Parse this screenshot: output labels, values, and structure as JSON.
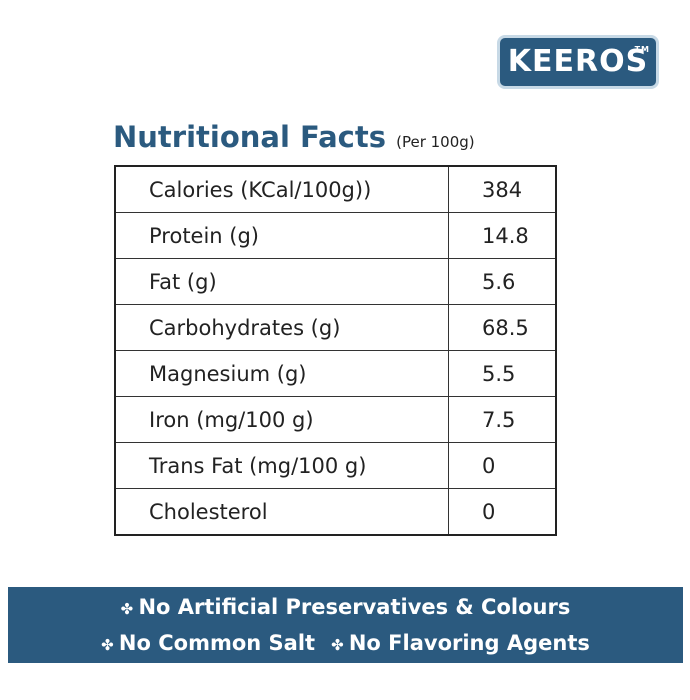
{
  "brand": {
    "name": "KEEROS",
    "mark": "TM"
  },
  "header": {
    "title": "Nutritional Facts",
    "subtitle": "(Per 100g)"
  },
  "table": {
    "rows": [
      [
        "Calories (KCal/100g))",
        "384"
      ],
      [
        "Protein (g)",
        "14.8"
      ],
      [
        "Fat (g)",
        "5.6"
      ],
      [
        "Carbohydrates (g)",
        "68.5"
      ],
      [
        "Magnesium (g)",
        "5.5"
      ],
      [
        "Iron (mg/100 g)",
        "7.5"
      ],
      [
        "Trans Fat (mg/100 g)",
        "0"
      ],
      [
        "Cholesterol",
        "0"
      ]
    ]
  },
  "banner": {
    "lines": [
      [
        "No Artificial Preservatives & Colours"
      ],
      [
        "No Common Salt",
        "No Flavoring Agents"
      ]
    ]
  }
}
